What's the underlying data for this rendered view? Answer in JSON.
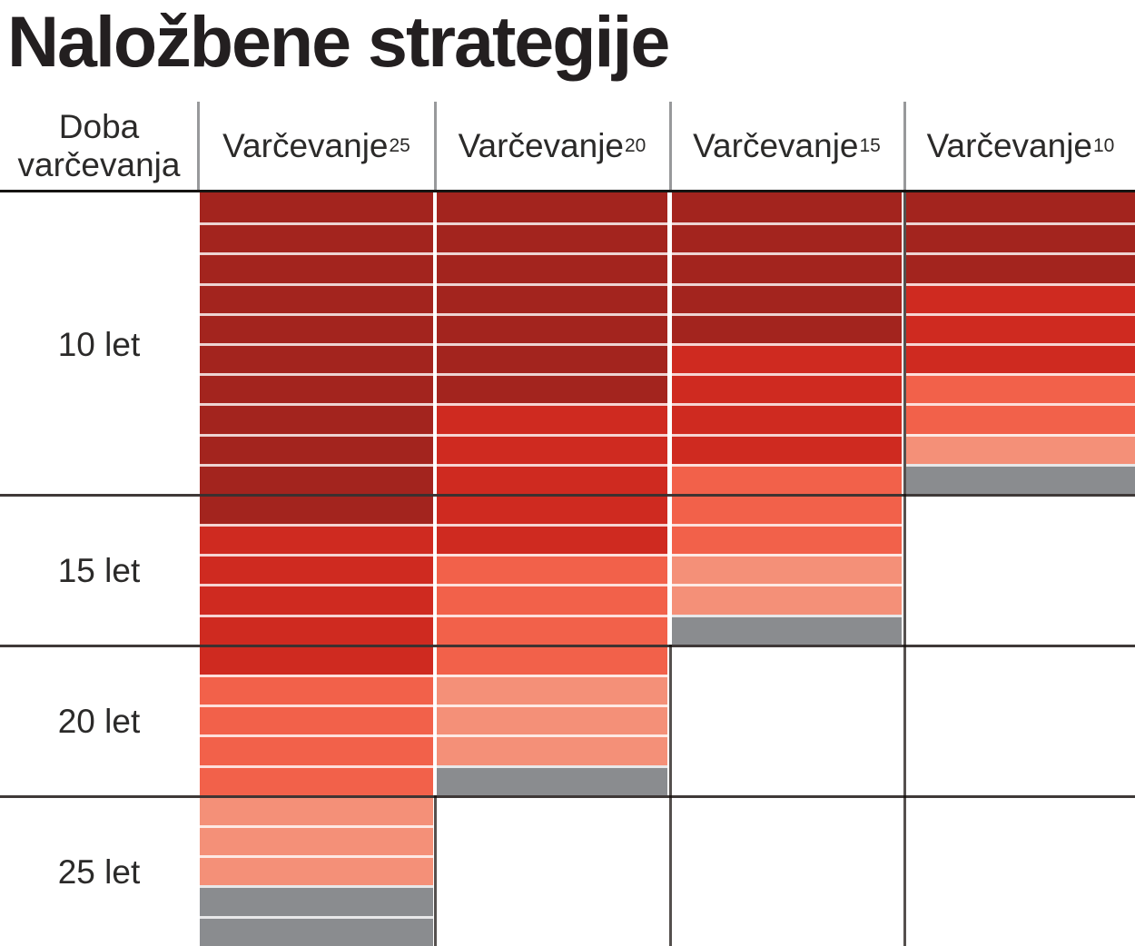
{
  "title": "Naložbene strategije",
  "table": {
    "row_header": "Doba varčevanja",
    "columns": [
      {
        "label": "Varčevanje",
        "sup": "25"
      },
      {
        "label": "Varčevanje",
        "sup": "20"
      },
      {
        "label": "Varčevanje",
        "sup": "15"
      },
      {
        "label": "Varčevanje",
        "sup": "10"
      }
    ],
    "row_labels": [
      "10 let",
      "15 let",
      "20 let",
      "25 let"
    ]
  },
  "chart_data": {
    "type": "heatmap",
    "title": "Naložbene strategije",
    "x_categories": [
      "Varčevanje²⁵",
      "Varčevanje²⁰",
      "Varčevanje¹⁵",
      "Varčevanje¹⁰"
    ],
    "y_categories": [
      "10 let",
      "15 let",
      "20 let",
      "25 let"
    ],
    "y_band_stripe_counts": [
      10,
      5,
      5,
      5
    ],
    "legend_position": "none",
    "grid": true,
    "palette": {
      "dark_red": "#A3241E",
      "red": "#CF2A20",
      "tomato": "#F2614A",
      "salmon": "#F49078",
      "gray": "#8A8C8F"
    },
    "stripe_separator_color": "rgba(255,255,255,0.8)",
    "columns": [
      {
        "name": "Varčevanje25",
        "years": 25,
        "runs": [
          [
            "dark_red",
            11
          ],
          [
            "red",
            5
          ],
          [
            "tomato",
            4
          ],
          [
            "salmon",
            3
          ],
          [
            "gray",
            2
          ]
        ]
      },
      {
        "name": "Varčevanje20",
        "years": 20,
        "runs": [
          [
            "dark_red",
            7
          ],
          [
            "red",
            5
          ],
          [
            "tomato",
            4
          ],
          [
            "salmon",
            3
          ],
          [
            "gray",
            1
          ]
        ]
      },
      {
        "name": "Varčevanje15",
        "years": 15,
        "runs": [
          [
            "dark_red",
            5
          ],
          [
            "red",
            4
          ],
          [
            "tomato",
            3
          ],
          [
            "salmon",
            2
          ],
          [
            "gray",
            1
          ]
        ]
      },
      {
        "name": "Varčevanje10",
        "years": 10,
        "runs": [
          [
            "dark_red",
            3
          ],
          [
            "red",
            3
          ],
          [
            "tomato",
            2
          ],
          [
            "salmon",
            1
          ],
          [
            "gray",
            1
          ]
        ]
      }
    ]
  }
}
